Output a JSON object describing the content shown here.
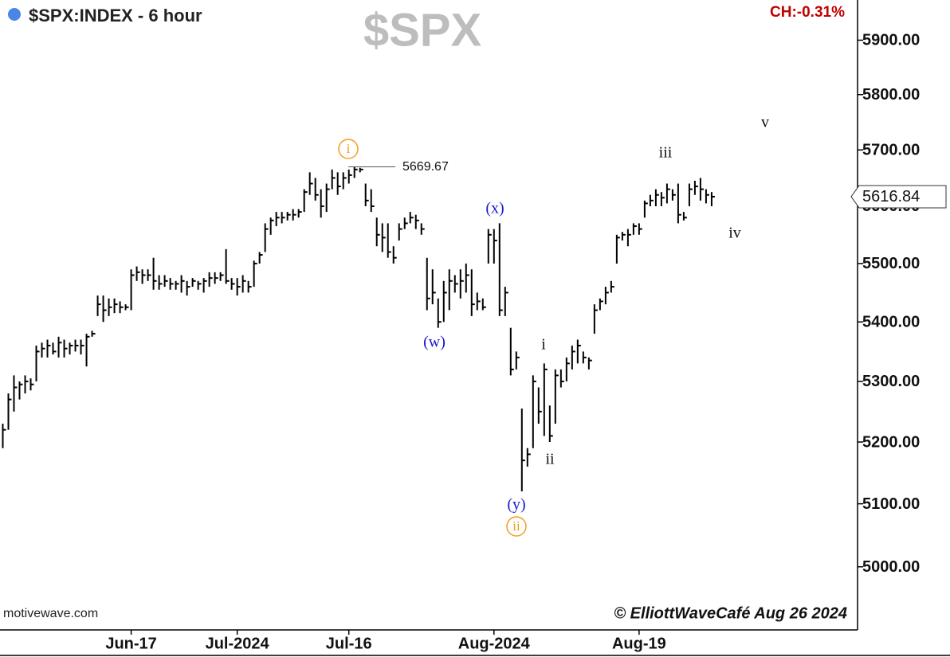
{
  "chart_data": {
    "type": "hlc",
    "title": "$SPX:INDEX - 6 hour",
    "watermark": "$SPX",
    "change": "CH:-0.31%",
    "source": "motivewave.com",
    "credit": "© ElliottWaveCafé Aug 26 2024",
    "log": true,
    "color": "#000000",
    "ylim": [
      4903,
      5975
    ],
    "yticks": [
      {
        "value": 5000,
        "label": "5000.00"
      },
      {
        "value": 5100,
        "label": "5100.00"
      },
      {
        "value": 5200,
        "label": "5200.00"
      },
      {
        "value": 5300,
        "label": "5300.00"
      },
      {
        "value": 5400,
        "label": "5400.00"
      },
      {
        "value": 5500,
        "label": "5500.00"
      },
      {
        "value": 5600,
        "label": "5600.00"
      },
      {
        "value": 5700,
        "label": "5700.00"
      },
      {
        "value": 5800,
        "label": "5800.00"
      },
      {
        "value": 5900,
        "label": "5900.00"
      }
    ],
    "xlim": [
      -0.5,
      153
    ],
    "xticks": [
      {
        "value": 23,
        "label": "Jun-17"
      },
      {
        "value": 42,
        "label": "Jul-2024"
      },
      {
        "value": 62,
        "label": "Jul-16"
      },
      {
        "value": 88,
        "label": "Aug-2024"
      },
      {
        "value": 114,
        "label": "Aug-19"
      }
    ],
    "high": [
      5230,
      5280,
      5310,
      5300,
      5310,
      5305,
      5360,
      5365,
      5370,
      5365,
      5375,
      5370,
      5365,
      5370,
      5370,
      5380,
      5385,
      5445,
      5445,
      5440,
      5440,
      5435,
      5430,
      5490,
      5495,
      5490,
      5490,
      5510,
      5480,
      5480,
      5475,
      5470,
      5480,
      5470,
      5475,
      5470,
      5475,
      5485,
      5485,
      5485,
      5525,
      5475,
      5475,
      5480,
      5470,
      5505,
      5520,
      5570,
      5580,
      5590,
      5590,
      5590,
      5595,
      5595,
      5630,
      5660,
      5650,
      5630,
      5640,
      5665,
      5660,
      5660,
      5665,
      5669.67,
      5668,
      5640,
      5630,
      5580,
      5570,
      5570,
      5530,
      5570,
      5580,
      5590,
      5585,
      5570,
      5510,
      5490,
      5440,
      5470,
      5490,
      5480,
      5490,
      5500,
      5490,
      5450,
      5440,
      5560,
      5560,
      5570,
      5460,
      5390,
      5350,
      5255,
      5190,
      5310,
      5290,
      5330,
      5260,
      5320,
      5320,
      5340,
      5360,
      5370,
      5350,
      5340,
      5430,
      5440,
      5460,
      5470,
      5550,
      5555,
      5560,
      5570,
      5570,
      5610,
      5620,
      5630,
      5625,
      5640,
      5630,
      5640,
      5590,
      5640,
      5645,
      5650,
      5630,
      5625
    ],
    "low": [
      5190,
      5220,
      5250,
      5270,
      5280,
      5285,
      5300,
      5340,
      5340,
      5345,
      5340,
      5340,
      5345,
      5350,
      5345,
      5325,
      5375,
      5410,
      5400,
      5410,
      5415,
      5415,
      5420,
      5420,
      5470,
      5465,
      5470,
      5455,
      5455,
      5460,
      5455,
      5455,
      5450,
      5445,
      5460,
      5455,
      5450,
      5460,
      5465,
      5470,
      5465,
      5455,
      5445,
      5450,
      5450,
      5460,
      5500,
      5520,
      5550,
      5565,
      5570,
      5575,
      5575,
      5580,
      5590,
      5620,
      5610,
      5580,
      5590,
      5630,
      5620,
      5630,
      5640,
      5650,
      5660,
      5600,
      5590,
      5530,
      5520,
      5510,
      5500,
      5540,
      5560,
      5570,
      5560,
      5550,
      5420,
      5430,
      5390,
      5400,
      5420,
      5450,
      5440,
      5450,
      5410,
      5420,
      5420,
      5500,
      5500,
      5410,
      5410,
      5310,
      5320,
      5120,
      5160,
      5190,
      5230,
      5210,
      5200,
      5230,
      5290,
      5300,
      5320,
      5330,
      5330,
      5320,
      5380,
      5420,
      5430,
      5450,
      5500,
      5540,
      5530,
      5550,
      5550,
      5580,
      5600,
      5600,
      5600,
      5605,
      5610,
      5570,
      5575,
      5600,
      5620,
      5610,
      5605,
      5600
    ],
    "close": [
      5220,
      5270,
      5290,
      5295,
      5300,
      5295,
      5350,
      5355,
      5360,
      5350,
      5365,
      5355,
      5360,
      5360,
      5360,
      5375,
      5380,
      5430,
      5420,
      5425,
      5430,
      5425,
      5425,
      5480,
      5485,
      5480,
      5480,
      5470,
      5465,
      5470,
      5465,
      5465,
      5470,
      5460,
      5470,
      5465,
      5470,
      5475,
      5475,
      5480,
      5470,
      5465,
      5460,
      5470,
      5460,
      5500,
      5515,
      5560,
      5575,
      5580,
      5580,
      5585,
      5585,
      5590,
      5625,
      5640,
      5620,
      5600,
      5630,
      5650,
      5635,
      5650,
      5655,
      5665,
      5665,
      5610,
      5600,
      5550,
      5545,
      5520,
      5510,
      5560,
      5570,
      5580,
      5575,
      5560,
      5440,
      5450,
      5400,
      5450,
      5470,
      5465,
      5470,
      5480,
      5430,
      5435,
      5425,
      5550,
      5540,
      5420,
      5450,
      5320,
      5340,
      5170,
      5180,
      5300,
      5250,
      5320,
      5210,
      5310,
      5300,
      5330,
      5350,
      5360,
      5340,
      5335,
      5420,
      5435,
      5450,
      5460,
      5545,
      5550,
      5550,
      5565,
      5560,
      5605,
      5610,
      5620,
      5615,
      5630,
      5620,
      5585,
      5580,
      5630,
      5635,
      5630,
      5620,
      5616.84
    ],
    "marked_high": 5669.67,
    "last_price": 5616.84,
    "annotations": [
      {
        "text": "i",
        "color": "#f0a020",
        "circled": true
      },
      {
        "text": "(x)",
        "color": "#1a1acc",
        "circled": false
      },
      {
        "text": "(w)",
        "color": "#1a1acc",
        "circled": false
      },
      {
        "text": "(y)",
        "color": "#1a1acc",
        "circled": false
      },
      {
        "text": "ii",
        "color": "#f0a020",
        "circled": true
      },
      {
        "text": "i",
        "color": "#111111",
        "circled": false
      },
      {
        "text": "ii",
        "color": "#111111",
        "circled": false
      },
      {
        "text": "iii",
        "color": "#111111",
        "circled": false
      },
      {
        "text": "iv",
        "color": "#111111",
        "circled": false
      },
      {
        "text": "v",
        "color": "#111111",
        "circled": false
      }
    ]
  }
}
